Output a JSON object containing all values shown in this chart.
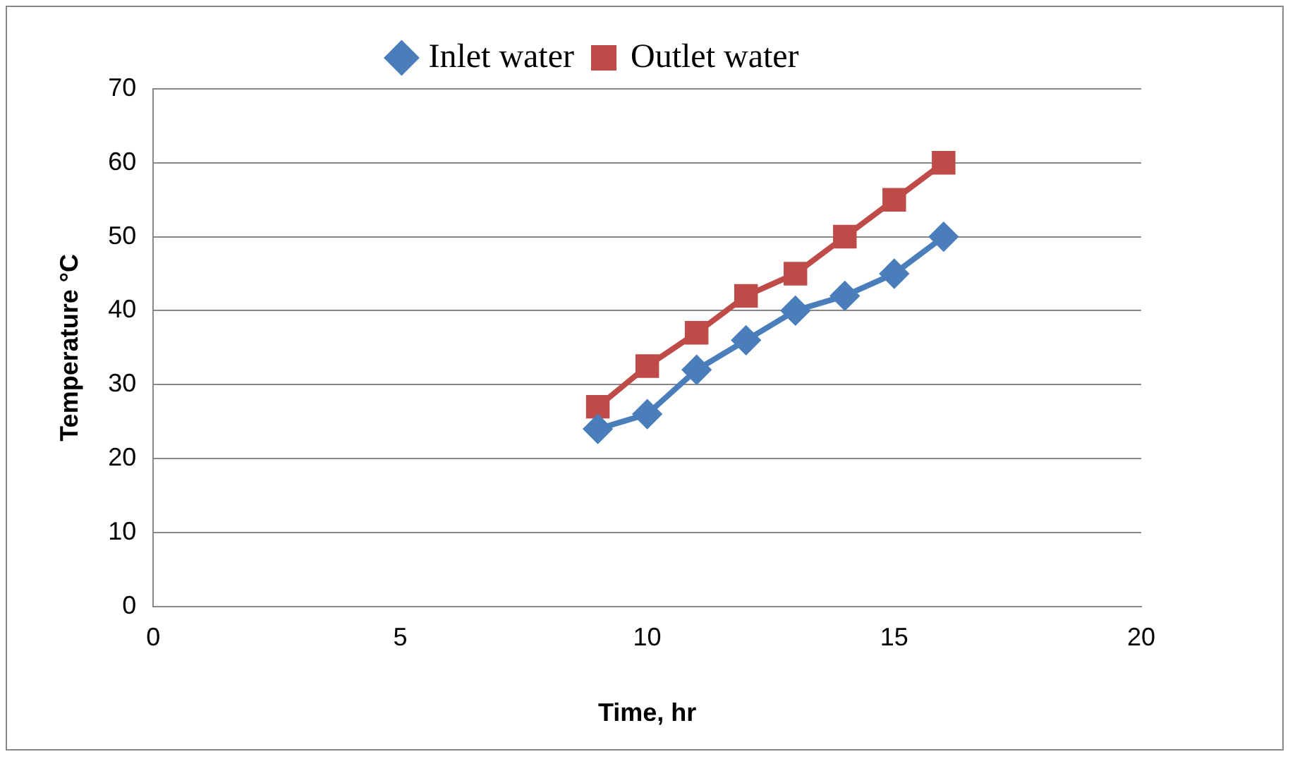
{
  "chart_data": {
    "type": "line",
    "xlabel": "Time, hr",
    "ylabel": "Temperature °C",
    "x": [
      9,
      10,
      11,
      12,
      13,
      14,
      15,
      16
    ],
    "series": [
      {
        "name": "Inlet water",
        "color": "#4a7ebb",
        "marker": "diamond",
        "values": [
          24,
          26,
          32,
          36,
          40,
          42,
          45,
          50
        ]
      },
      {
        "name": "Outlet water",
        "color": "#be4b48",
        "marker": "square",
        "values": [
          27,
          32.5,
          37,
          42,
          45,
          50,
          55,
          60
        ]
      }
    ],
    "xlim": [
      0,
      20
    ],
    "xticks": [
      0,
      5,
      10,
      15,
      20
    ],
    "ylim": [
      0,
      70
    ],
    "yticks": [
      0,
      10,
      20,
      30,
      40,
      50,
      60,
      70
    ],
    "grid": "y",
    "legend": "top"
  }
}
